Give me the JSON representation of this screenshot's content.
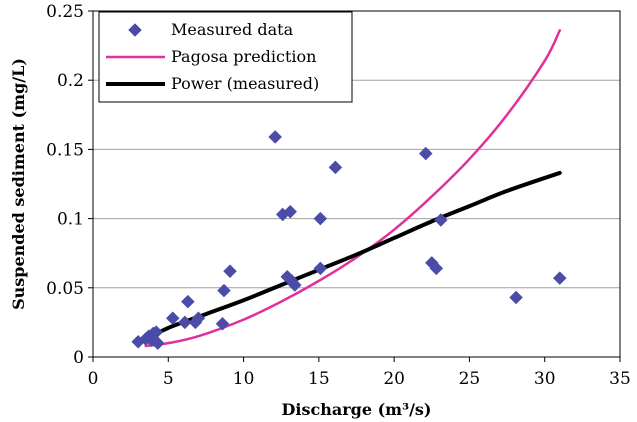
{
  "chart_data": {
    "type": "scatter",
    "xlabel": "Discharge (m³/s)",
    "ylabel": "Suspended sediment (mg/L)",
    "xlim": [
      0,
      35
    ],
    "ylim": [
      0,
      0.25
    ],
    "x_ticks": [
      0,
      5,
      10,
      15,
      20,
      25,
      30,
      35
    ],
    "y_ticks": [
      0,
      0.05,
      0.1,
      0.15,
      0.2,
      0.25
    ],
    "x_tick_labels": [
      "0",
      "5",
      "10",
      "15",
      "20",
      "25",
      "30",
      "35"
    ],
    "y_tick_labels": [
      "0",
      "0.05",
      "0.1",
      "0.15",
      "0.2",
      "0.25"
    ],
    "grid": "horizontal",
    "legend_position": "top-left",
    "series": [
      {
        "name": "Measured data",
        "kind": "points",
        "marker": "diamond",
        "color": "#4B4BA8",
        "points": [
          [
            3.0,
            0.011
          ],
          [
            3.5,
            0.013
          ],
          [
            3.7,
            0.015
          ],
          [
            3.9,
            0.012
          ],
          [
            4.0,
            0.017
          ],
          [
            4.2,
            0.018
          ],
          [
            4.3,
            0.01
          ],
          [
            5.3,
            0.028
          ],
          [
            6.1,
            0.025
          ],
          [
            6.3,
            0.04
          ],
          [
            6.8,
            0.025
          ],
          [
            7.0,
            0.028
          ],
          [
            8.6,
            0.024
          ],
          [
            8.7,
            0.048
          ],
          [
            9.1,
            0.062
          ],
          [
            12.1,
            0.159
          ],
          [
            12.6,
            0.103
          ],
          [
            12.9,
            0.058
          ],
          [
            13.1,
            0.105
          ],
          [
            13.2,
            0.055
          ],
          [
            13.4,
            0.052
          ],
          [
            15.1,
            0.1
          ],
          [
            15.1,
            0.064
          ],
          [
            16.1,
            0.137
          ],
          [
            22.1,
            0.147
          ],
          [
            22.5,
            0.068
          ],
          [
            22.8,
            0.064
          ],
          [
            23.1,
            0.099
          ],
          [
            28.1,
            0.043
          ],
          [
            31.0,
            0.057
          ]
        ]
      },
      {
        "name": "Pagosa prediction",
        "kind": "curve",
        "color": "#E0309A",
        "points": [
          [
            3.5,
            0.008
          ],
          [
            5,
            0.01
          ],
          [
            7,
            0.015
          ],
          [
            10,
            0.027
          ],
          [
            12.5,
            0.04
          ],
          [
            15,
            0.055
          ],
          [
            17.5,
            0.072
          ],
          [
            20,
            0.092
          ],
          [
            22.5,
            0.116
          ],
          [
            25,
            0.143
          ],
          [
            27.5,
            0.175
          ],
          [
            30,
            0.214
          ],
          [
            31,
            0.236
          ]
        ]
      },
      {
        "name": "Power (measured)",
        "kind": "curve",
        "color": "#000000",
        "points": [
          [
            3,
            0.01
          ],
          [
            5,
            0.021
          ],
          [
            7.5,
            0.031
          ],
          [
            10,
            0.041
          ],
          [
            12.5,
            0.052
          ],
          [
            15,
            0.063
          ],
          [
            17.5,
            0.074
          ],
          [
            20,
            0.086
          ],
          [
            22.5,
            0.098
          ],
          [
            25,
            0.109
          ],
          [
            27.5,
            0.12
          ],
          [
            31,
            0.133
          ]
        ]
      }
    ]
  }
}
